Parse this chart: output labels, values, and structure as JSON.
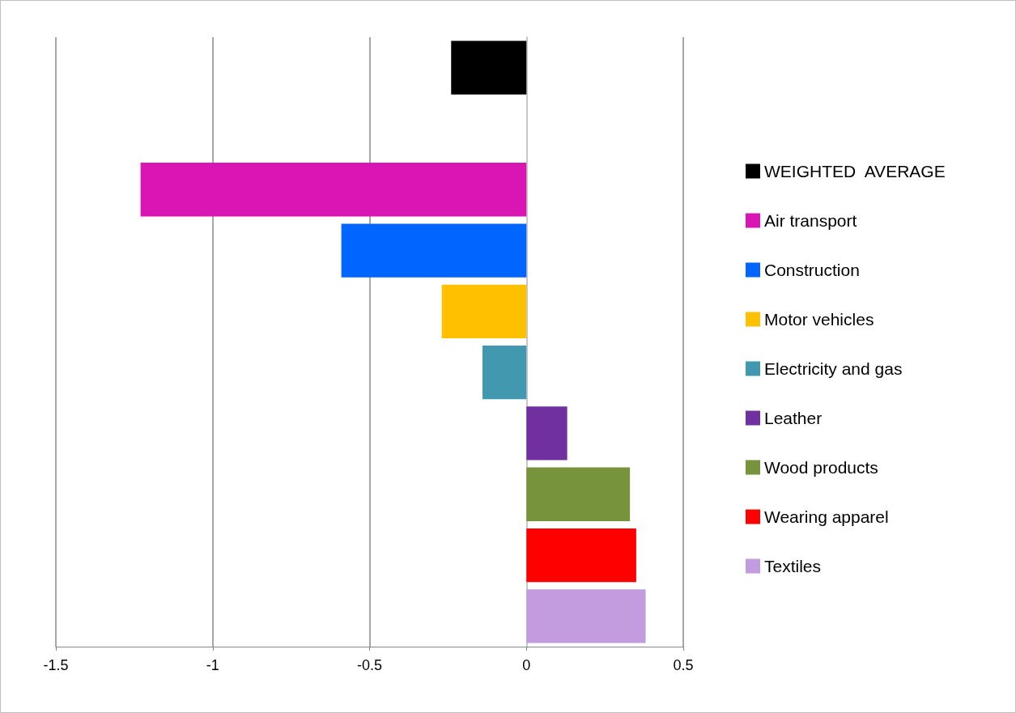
{
  "chart_data": {
    "type": "bar",
    "orientation": "horizontal",
    "categories": [
      null,
      null,
      null,
      null,
      null,
      null,
      null,
      null,
      null,
      null
    ],
    "series": [
      {
        "name": "WEIGHTED  AVERAGE",
        "color": "#000000",
        "values": [
          -0.24,
          null,
          null,
          null,
          null,
          null,
          null,
          null,
          null,
          null
        ]
      },
      {
        "name": "Air transport",
        "color": "#d916b4",
        "values": [
          null,
          null,
          -1.23,
          null,
          null,
          null,
          null,
          null,
          null,
          null
        ]
      },
      {
        "name": "Construction",
        "color": "#0066ff",
        "values": [
          null,
          null,
          null,
          -0.59,
          null,
          null,
          null,
          null,
          null,
          null
        ]
      },
      {
        "name": "Motor vehicles",
        "color": "#ffc000",
        "values": [
          null,
          null,
          null,
          null,
          -0.27,
          null,
          null,
          null,
          null,
          null
        ]
      },
      {
        "name": "Electricity and gas",
        "color": "#4198af",
        "values": [
          null,
          null,
          null,
          null,
          null,
          -0.14,
          null,
          null,
          null,
          null
        ]
      },
      {
        "name": "Leather",
        "color": "#7030a0",
        "values": [
          null,
          null,
          null,
          null,
          null,
          null,
          0.13,
          null,
          null,
          null
        ]
      },
      {
        "name": "Wood products",
        "color": "#77933c",
        "values": [
          null,
          null,
          null,
          null,
          null,
          null,
          null,
          0.33,
          null,
          null
        ]
      },
      {
        "name": "Wearing apparel",
        "color": "#ff0000",
        "values": [
          null,
          null,
          null,
          null,
          null,
          null,
          null,
          null,
          0.35,
          null
        ]
      },
      {
        "name": "Textiles",
        "color": "#c39bdf",
        "values": [
          null,
          null,
          null,
          null,
          null,
          null,
          null,
          null,
          null,
          0.38
        ]
      }
    ],
    "xlim": [
      -1.5,
      0.5
    ],
    "xticks": [
      -1.5,
      -1,
      -0.5,
      0,
      0.5
    ],
    "grid": "x",
    "legend": "right",
    "tick_labels": "x"
  }
}
